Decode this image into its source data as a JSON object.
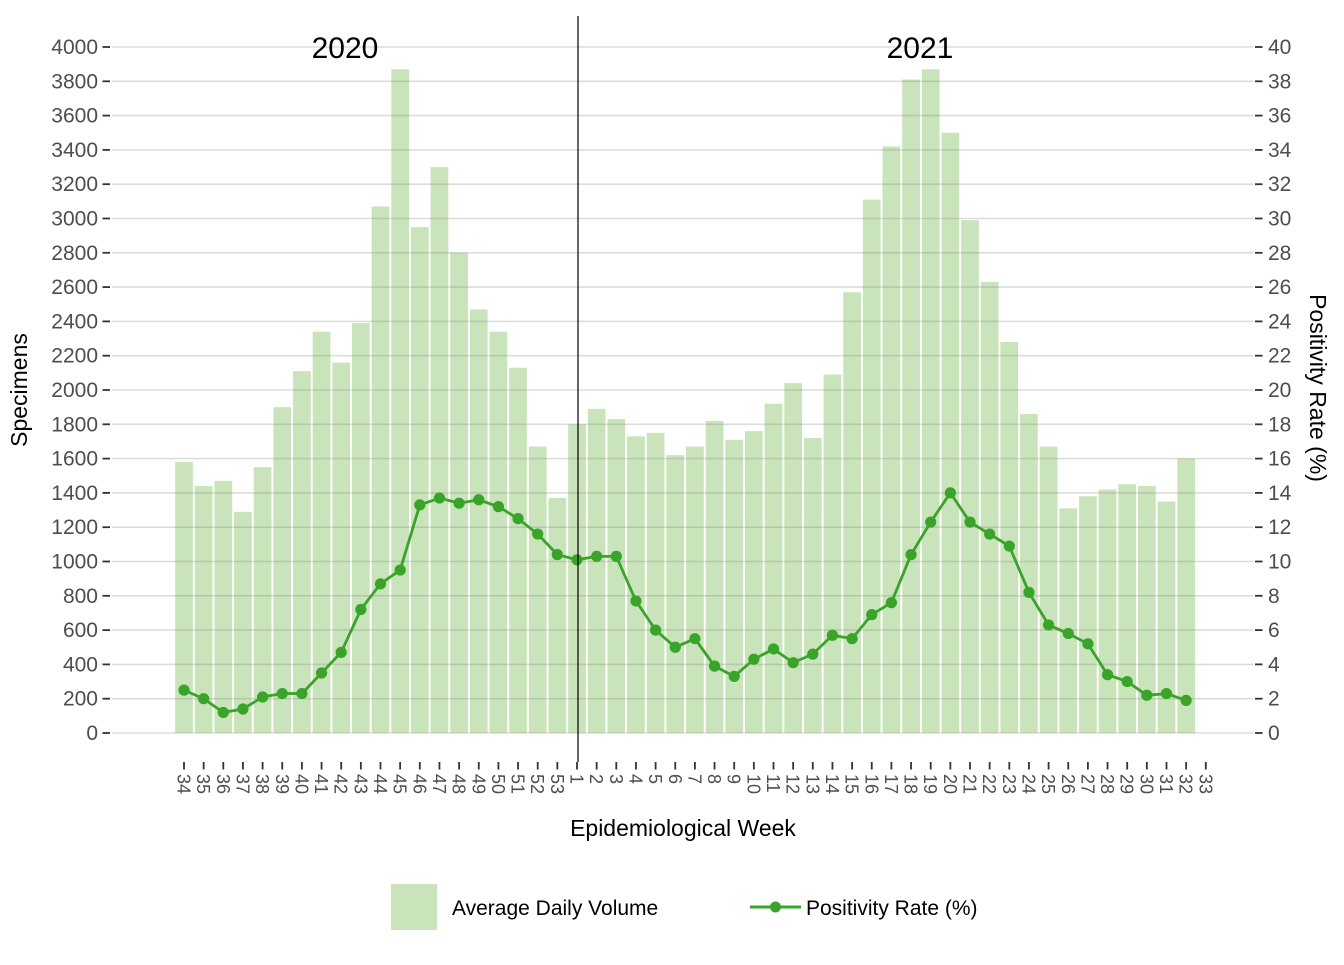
{
  "chart_data": {
    "type": "combo-bar-line",
    "categories": [
      "34",
      "35",
      "36",
      "37",
      "38",
      "39",
      "40",
      "41",
      "42",
      "43",
      "44",
      "45",
      "46",
      "47",
      "48",
      "49",
      "50",
      "51",
      "52",
      "53",
      "1",
      "2",
      "3",
      "4",
      "5",
      "6",
      "7",
      "8",
      "9",
      "10",
      "11",
      "12",
      "13",
      "14",
      "15",
      "16",
      "17",
      "18",
      "19",
      "20",
      "21",
      "22",
      "23",
      "24",
      "25",
      "26",
      "27",
      "28",
      "29",
      "30",
      "31",
      "32",
      "33"
    ],
    "series": [
      {
        "name": "Average Daily Volume",
        "type": "bar",
        "axis": "left",
        "color": "#c9e4ba",
        "values": [
          1580,
          1440,
          1470,
          1290,
          1550,
          1900,
          2110,
          2340,
          2160,
          2390,
          3070,
          3870,
          2950,
          3300,
          2800,
          2470,
          2340,
          2130,
          1670,
          1370,
          1800,
          1890,
          1830,
          1730,
          1750,
          1620,
          1670,
          1820,
          1710,
          1760,
          1920,
          2040,
          1720,
          2090,
          2570,
          3110,
          3420,
          3810,
          3870,
          3500,
          2990,
          2630,
          2280,
          1860,
          1670,
          1310,
          1380,
          1420,
          1450,
          1440,
          1350,
          1600,
          null
        ]
      },
      {
        "name": "Positivity Rate (%)",
        "type": "line",
        "axis": "right",
        "color": "#3aa32a",
        "values": [
          2.5,
          2.0,
          1.2,
          1.4,
          2.1,
          2.3,
          2.3,
          3.5,
          4.7,
          7.2,
          8.7,
          9.5,
          13.3,
          13.7,
          13.4,
          13.6,
          13.2,
          12.5,
          11.6,
          10.4,
          10.1,
          10.3,
          10.3,
          7.7,
          6.0,
          5.0,
          5.5,
          3.9,
          3.3,
          4.3,
          4.9,
          4.1,
          4.6,
          5.7,
          5.5,
          6.9,
          7.6,
          10.4,
          12.3,
          14.0,
          12.3,
          11.6,
          10.9,
          8.2,
          6.3,
          5.8,
          5.2,
          3.4,
          3.0,
          2.2,
          2.3,
          1.9,
          null
        ]
      }
    ],
    "left_axis": {
      "label": "Specimens",
      "min": 0,
      "max": 4000,
      "step": 200,
      "ticks": [
        "0",
        "200",
        "400",
        "600",
        "800",
        "1000",
        "1200",
        "1400",
        "1600",
        "1800",
        "2000",
        "2200",
        "2400",
        "2600",
        "2800",
        "3000",
        "3200",
        "3400",
        "3600",
        "3800",
        "4000"
      ]
    },
    "right_axis": {
      "label": "Positivity Rate (%)",
      "min": 0,
      "max": 40,
      "step": 2,
      "ticks": [
        "0",
        "2",
        "4",
        "6",
        "8",
        "10",
        "12",
        "14",
        "16",
        "18",
        "20",
        "22",
        "24",
        "26",
        "28",
        "30",
        "32",
        "34",
        "36",
        "38",
        "40"
      ]
    },
    "x_axis": {
      "label": "Epidemiological Week"
    },
    "annotations": [
      {
        "text": "2020"
      },
      {
        "text": "2021"
      }
    ],
    "grid": true,
    "legend_position": "bottom",
    "gridline_color": "#d9d9d9",
    "divider_between": [
      "53",
      "1"
    ]
  }
}
